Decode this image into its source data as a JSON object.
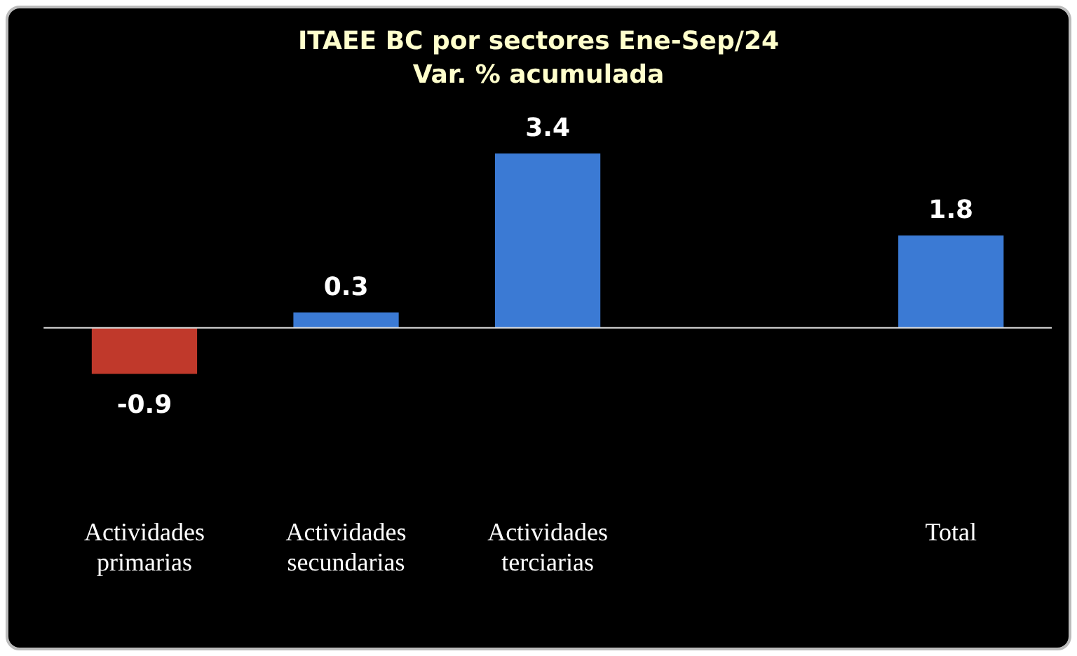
{
  "chart_data": {
    "type": "bar",
    "title": "ITAEE BC por sectores Ene-Sep/24\nVar. % acumulada",
    "categories": [
      "Actividades primarias",
      "Actividades secundarias",
      "Actividades terciarias",
      null,
      "Total"
    ],
    "values": [
      -0.9,
      0.3,
      3.4,
      null,
      1.8
    ],
    "colors": [
      "#c0392b",
      "#3b7ad4",
      "#3b7ad4",
      null,
      "#3b7ad4"
    ],
    "data_labels": true,
    "legend": false
  }
}
